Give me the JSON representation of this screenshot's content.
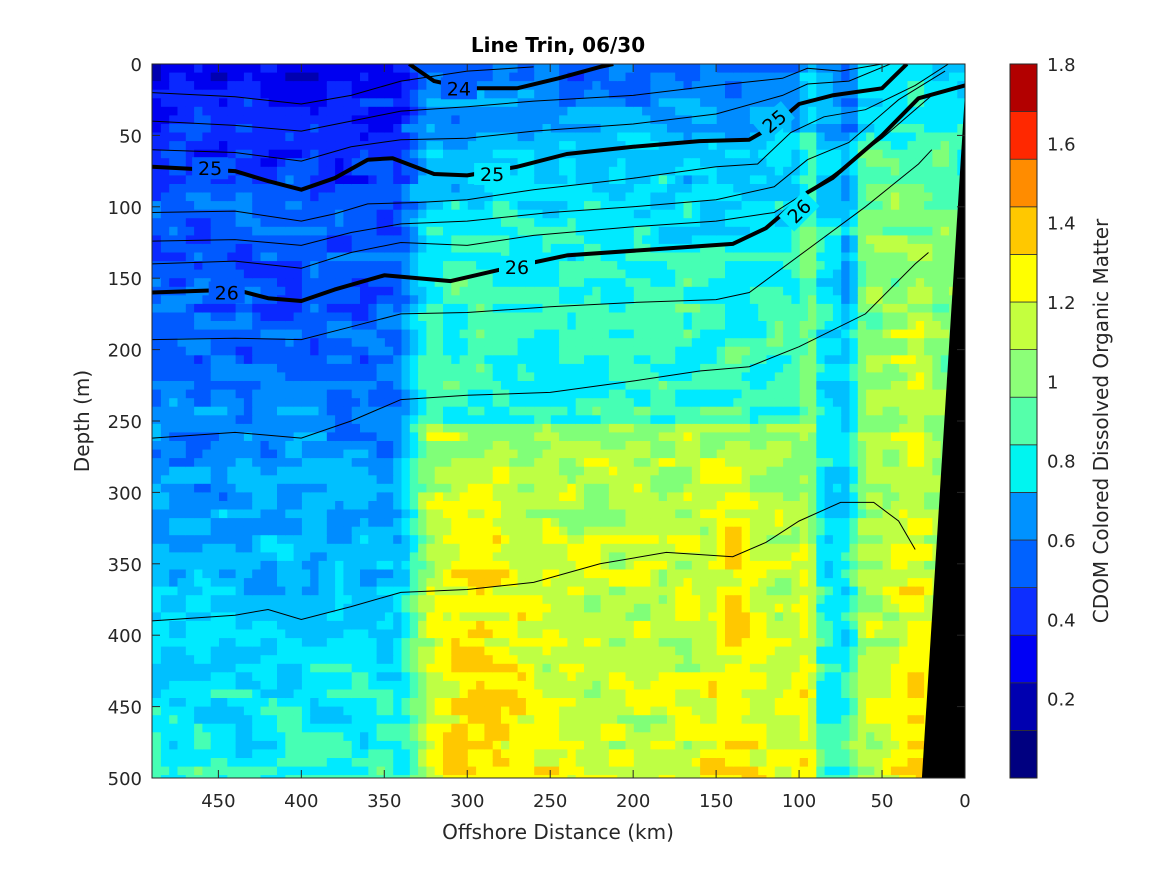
{
  "chart_data": {
    "type": "heatmap",
    "subtype": "filled-contour",
    "title": "Line Trin, 06/30",
    "xlabel": "Offshore Distance (km)",
    "ylabel": "Depth (m)",
    "colorbar_label": "CDOM Colored Dissolved Organic Matter",
    "xlim": [
      490,
      0
    ],
    "ylim": [
      500,
      0
    ],
    "x_direction": "reversed",
    "y_direction": "reversed",
    "xticks": [
      450,
      400,
      350,
      300,
      250,
      200,
      150,
      100,
      50,
      0
    ],
    "xtick_labels": [
      "450",
      "400",
      "350",
      "300",
      "250",
      "200",
      "150",
      "100",
      "50",
      "0"
    ],
    "yticks": [
      0,
      50,
      100,
      150,
      200,
      250,
      300,
      350,
      400,
      450,
      500
    ],
    "ytick_labels": [
      "0",
      "50",
      "100",
      "150",
      "200",
      "250",
      "300",
      "350",
      "400",
      "450",
      "500"
    ],
    "colorbar": {
      "range": [
        0,
        1.8
      ],
      "ticks": [
        0.2,
        0.4,
        0.6,
        0.8,
        1,
        1.2,
        1.4,
        1.6,
        1.8
      ],
      "tick_labels": [
        "0.2",
        "0.4",
        "0.6",
        "0.8",
        "1",
        "1.2",
        "1.4",
        "1.6",
        "1.8"
      ],
      "levels": 15,
      "colors": [
        "#00007f",
        "#0000b2",
        "#0000f0",
        "#0d2eff",
        "#0062ff",
        "#0092ff",
        "#00c8ff",
        "#00f2f2",
        "#4cffb2",
        "#8cff76",
        "#c4ff3e",
        "#ffff00",
        "#ffc400",
        "#ff8c00",
        "#ff5a00",
        "#ff2800",
        "#ee0000",
        "#b20000"
      ]
    },
    "field_description": {
      "offshore_low_region": {
        "x_range_km": [
          330,
          490
        ],
        "value_range": [
          0.35,
          0.85
        ]
      },
      "core_high_region": {
        "x_range_km": [
          100,
          330
        ],
        "depth_range_m": [
          250,
          500
        ],
        "value_range": [
          1.1,
          1.45
        ]
      },
      "mid_region": {
        "x_range_km": [
          100,
          330
        ],
        "depth_range_m": [
          150,
          250
        ],
        "value_range": [
          0.9,
          1.05
        ]
      },
      "nearshore_column": {
        "x_range_km": [
          75,
          100
        ],
        "value_range": [
          0.75,
          0.95
        ]
      },
      "coastal_band": {
        "x_range_km": [
          0,
          75
        ],
        "value_range": [
          1.0,
          1.35
        ]
      }
    },
    "bathymetry": {
      "color": "#000000",
      "points": [
        [
          0,
          20
        ],
        [
          26,
          500
        ],
        [
          0,
          500
        ]
      ]
    },
    "density_contours": {
      "labeled_levels": [
        "24",
        "25",
        "26"
      ],
      "bold": [
        {
          "level": "24",
          "points": [
            [
              335,
              0
            ],
            [
              320,
              12
            ],
            [
              300,
              17
            ],
            [
              270,
              17
            ],
            [
              245,
              10
            ],
            [
              220,
              2
            ],
            [
              212,
              0
            ]
          ],
          "labels_at": [
            [
              305,
              17
            ]
          ]
        },
        {
          "level": "25",
          "points": [
            [
              490,
              72
            ],
            [
              440,
              75
            ],
            [
              420,
              82
            ],
            [
              400,
              88
            ],
            [
              380,
              80
            ],
            [
              360,
              67
            ],
            [
              345,
              66
            ],
            [
              320,
              77
            ],
            [
              300,
              78
            ],
            [
              270,
              72
            ],
            [
              240,
              63
            ],
            [
              200,
              58
            ],
            [
              160,
              54
            ],
            [
              130,
              53
            ],
            [
              115,
              43
            ],
            [
              100,
              28
            ],
            [
              80,
              22
            ],
            [
              50,
              17
            ],
            [
              35,
              0
            ]
          ],
          "labels_at": [
            [
              455,
              73
            ],
            [
              285,
              77
            ],
            [
              115,
              40
            ]
          ]
        },
        {
          "level": "26",
          "points": [
            [
              490,
              160
            ],
            [
              440,
              158
            ],
            [
              420,
              164
            ],
            [
              400,
              166
            ],
            [
              380,
              158
            ],
            [
              350,
              148
            ],
            [
              310,
              152
            ],
            [
              280,
              144
            ],
            [
              240,
              134
            ],
            [
              190,
              130
            ],
            [
              140,
              126
            ],
            [
              120,
              115
            ],
            [
              95,
              90
            ],
            [
              80,
              80
            ],
            [
              50,
              50
            ],
            [
              28,
              24
            ],
            [
              0,
              15
            ]
          ],
          "labels_at": [
            [
              445,
              160
            ],
            [
              270,
              142
            ],
            [
              100,
              103
            ]
          ]
        }
      ],
      "thin_levels": [
        [
          [
            490,
            20
          ],
          [
            440,
            23
          ],
          [
            400,
            28
          ],
          [
            370,
            22
          ],
          [
            340,
            12
          ],
          [
            300,
            5
          ],
          [
            260,
            2
          ]
        ],
        [
          [
            490,
            40
          ],
          [
            440,
            43
          ],
          [
            400,
            47
          ],
          [
            370,
            40
          ],
          [
            340,
            33
          ],
          [
            300,
            30
          ],
          [
            260,
            26
          ],
          [
            200,
            22
          ],
          [
            150,
            15
          ],
          [
            110,
            10
          ],
          [
            95,
            3
          ],
          [
            75,
            5
          ],
          [
            50,
            0
          ]
        ],
        [
          [
            490,
            60
          ],
          [
            440,
            62
          ],
          [
            400,
            68
          ],
          [
            370,
            58
          ],
          [
            340,
            53
          ],
          [
            300,
            52
          ],
          [
            260,
            47
          ],
          [
            200,
            42
          ],
          [
            150,
            35
          ],
          [
            110,
            22
          ],
          [
            95,
            14
          ],
          [
            70,
            12
          ],
          [
            45,
            0
          ]
        ],
        [
          [
            490,
            104
          ],
          [
            440,
            103
          ],
          [
            400,
            110
          ],
          [
            380,
            105
          ],
          [
            360,
            98
          ],
          [
            330,
            97
          ],
          [
            300,
            95
          ],
          [
            260,
            88
          ],
          [
            200,
            80
          ],
          [
            150,
            72
          ],
          [
            125,
            70
          ],
          [
            105,
            48
          ],
          [
            85,
            37
          ],
          [
            60,
            32
          ],
          [
            30,
            15
          ],
          [
            10,
            0
          ]
        ],
        [
          [
            490,
            124
          ],
          [
            440,
            123
          ],
          [
            400,
            127
          ],
          [
            370,
            118
          ],
          [
            340,
            112
          ],
          [
            300,
            110
          ],
          [
            250,
            104
          ],
          [
            200,
            100
          ],
          [
            150,
            95
          ],
          [
            115,
            86
          ],
          [
            95,
            67
          ],
          [
            70,
            55
          ],
          [
            40,
            25
          ],
          [
            12,
            5
          ]
        ],
        [
          [
            490,
            140
          ],
          [
            440,
            138
          ],
          [
            400,
            143
          ],
          [
            370,
            132
          ],
          [
            340,
            125
          ],
          [
            300,
            127
          ],
          [
            260,
            120
          ],
          [
            200,
            114
          ],
          [
            150,
            110
          ],
          [
            115,
            104
          ],
          [
            80,
            78
          ],
          [
            50,
            52
          ],
          [
            20,
            22
          ]
        ],
        [
          [
            490,
            193
          ],
          [
            440,
            192
          ],
          [
            400,
            193
          ],
          [
            370,
            184
          ],
          [
            340,
            175
          ],
          [
            300,
            174
          ],
          [
            250,
            170
          ],
          [
            200,
            167
          ],
          [
            150,
            165
          ],
          [
            130,
            160
          ],
          [
            95,
            130
          ],
          [
            60,
            100
          ],
          [
            28,
            70
          ],
          [
            20,
            60
          ]
        ],
        [
          [
            490,
            262
          ],
          [
            440,
            258
          ],
          [
            400,
            262
          ],
          [
            370,
            250
          ],
          [
            340,
            235
          ],
          [
            300,
            232
          ],
          [
            250,
            230
          ],
          [
            200,
            222
          ],
          [
            160,
            215
          ],
          [
            130,
            212
          ],
          [
            100,
            198
          ],
          [
            60,
            175
          ],
          [
            30,
            140
          ],
          [
            22,
            132
          ]
        ],
        [
          [
            490,
            390
          ],
          [
            440,
            386
          ],
          [
            420,
            382
          ],
          [
            400,
            389
          ],
          [
            370,
            380
          ],
          [
            340,
            370
          ],
          [
            300,
            368
          ],
          [
            260,
            363
          ],
          [
            220,
            350
          ],
          [
            180,
            342
          ],
          [
            140,
            345
          ],
          [
            120,
            335
          ],
          [
            100,
            320
          ],
          [
            75,
            307
          ],
          [
            55,
            307
          ],
          [
            40,
            320
          ],
          [
            30,
            340
          ]
        ]
      ]
    }
  }
}
